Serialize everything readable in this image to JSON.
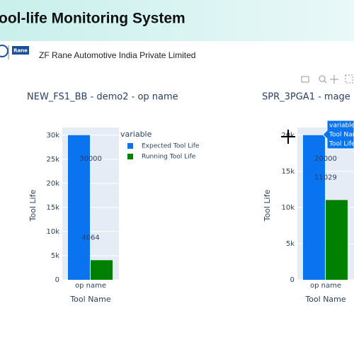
{
  "header": {
    "title": "ool-life Monitoring System",
    "logo_text": "Rane",
    "company": "ZF Rane Automotive India Private Limited"
  },
  "chart_data": [
    {
      "type": "bar",
      "title": "NEW_FS1_BB - demo2 - op name",
      "categories": [
        "op name"
      ],
      "series": [
        {
          "name": "Expected Tool Life",
          "color": "#0a74f0",
          "values": [
            30000
          ]
        },
        {
          "name": "Running Tool Life",
          "color": "#008000",
          "values": [
            4064
          ]
        }
      ],
      "ylim": [
        0,
        31579
      ],
      "yticks": [
        0,
        {
          "value": 5000,
          "label": "5k"
        },
        {
          "value": 10000,
          "label": "10k"
        },
        {
          "value": 15000,
          "label": "15k"
        },
        {
          "value": 20000,
          "label": "20k"
        },
        {
          "value": 25000,
          "label": "25k"
        },
        {
          "value": 30000,
          "label": "30k"
        }
      ],
      "xlabel": "Tool Name",
      "ylabel": "Tool Life",
      "legend_title": "variable",
      "grid": true
    },
    {
      "type": "bar",
      "title": "SPR_3PGA1 - mage",
      "categories": [
        "op name"
      ],
      "series": [
        {
          "color": "#0a74f0",
          "values": [
            20000
          ]
        },
        {
          "color": "#008000",
          "values": [
            11029
          ]
        }
      ],
      "ylim": [
        0,
        21053
      ],
      "yticks": [
        0,
        {
          "value": 5000,
          "label": "5k"
        },
        {
          "value": 10000,
          "label": "10k"
        },
        {
          "value": 15000,
          "label": "15k"
        },
        {
          "value": 20000,
          "label": "20k"
        }
      ],
      "xlabel": "Tool Name",
      "ylabel": "Tool Life",
      "grid": true,
      "hover": [
        "variable",
        "Tool Nam",
        "Tool Life"
      ]
    }
  ]
}
